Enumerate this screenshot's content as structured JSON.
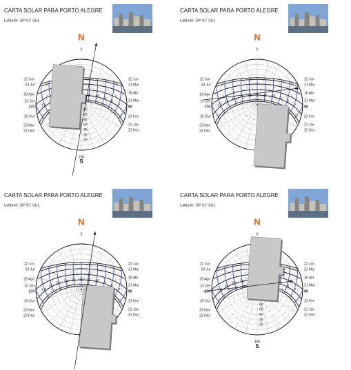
{
  "panels": [
    {
      "title": "CARTA SOLAR PARA PORTO ALEGRE",
      "latitude": "Latitude: 30º 01' SUL"
    },
    {
      "title": "CARTA SOLAR PARA PORTO ALEGRE",
      "latitude": "Latitude: 30º 01' SUL"
    },
    {
      "title": "CARTA SOLAR PARA PORTO ALEGRE",
      "latitude": "Latitude: 30º 01' SUL"
    },
    {
      "title": "CARTA SOLAR PARA PORTO ALEGRE",
      "latitude": "Latitude: 30º 01' SUL"
    }
  ],
  "sun_chart": {
    "north": "N",
    "south": "S",
    "azimuth_0": "0",
    "azimuth_180": "180",
    "azimuth_270": "270",
    "azimuth_90": "90",
    "left_dates": [
      "22 Jun",
      "24 Jul",
      "28 Ago",
      "23 Set",
      "20 Out",
      "23 Nov",
      "22 Dez"
    ],
    "right_dates": [
      "22 Jun",
      "21 Mai",
      "16 Abr",
      "21 Mar",
      "23 Fev",
      "21 Jan",
      "22 Dez"
    ],
    "altitudes": [
      "20",
      "30",
      "40",
      "50",
      "60",
      "70",
      "80"
    ],
    "hours": [
      "7",
      "8",
      "9",
      "10",
      "11",
      "12",
      "13",
      "14",
      "15",
      "16",
      "17"
    ]
  }
}
